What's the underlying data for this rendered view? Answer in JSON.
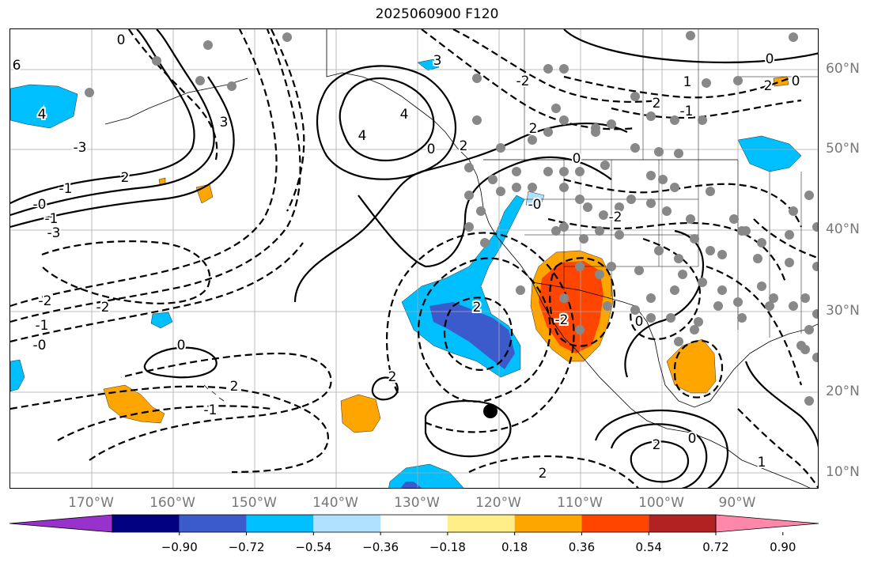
{
  "title": "2025060900 F120",
  "longitude_labels": [
    "170°W",
    "160°W",
    "150°W",
    "140°W",
    "130°W",
    "120°W",
    "110°W",
    "100°W",
    "90°W"
  ],
  "latitude_labels": [
    "60°N",
    "50°N",
    "40°N",
    "30°N",
    "20°N",
    "10°N"
  ],
  "colorbar": {
    "tick_labels": [
      "−0.90",
      "−0.72",
      "−0.54",
      "−0.36",
      "−0.18",
      "0.18",
      "0.36",
      "0.54",
      "0.72",
      "0.90"
    ],
    "colors": [
      "#9932cc",
      "#000080",
      "#3b5bcc",
      "#00bfff",
      "#b0e0ff",
      "#ffffff",
      "#ffee88",
      "#ffa500",
      "#ff4500",
      "#b22222",
      "#ff88aa"
    ]
  },
  "contour_labels": [
    "6",
    "4",
    "4",
    "-3",
    "-1",
    "2",
    "-1",
    "-3",
    "3",
    "0",
    "-2",
    "-2",
    "-1",
    "-0",
    "0",
    "-0",
    "-1",
    "2",
    "2",
    "4",
    "2",
    "-2",
    "2",
    "0",
    "-0",
    "0",
    "2",
    "1",
    "0",
    "-1",
    "2",
    "-2",
    "-2",
    "0",
    "1",
    "2",
    "0",
    "2",
    "3",
    "0",
    "2"
  ],
  "map": {
    "colors": {
      "contour": "#000000",
      "grid": "#aaaaaa",
      "coast": "#000000",
      "dot": "#888888",
      "black_dot": "#000000"
    }
  }
}
